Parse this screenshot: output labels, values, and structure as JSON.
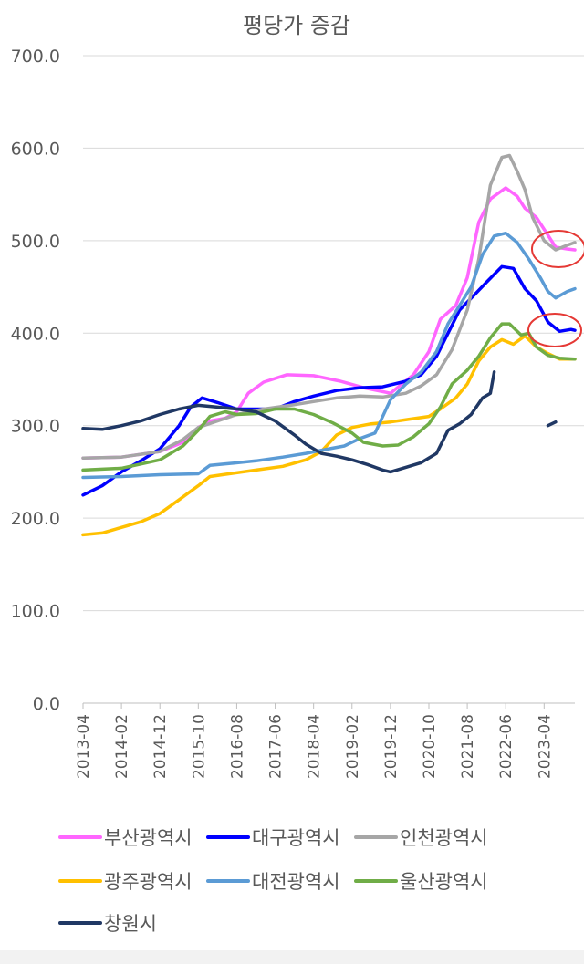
{
  "chart_data": {
    "type": "line",
    "title": "평당가 증감",
    "ylim": [
      0,
      700
    ],
    "y_ticks": [
      "0.0",
      "100.0",
      "200.0",
      "300.0",
      "400.0",
      "500.0",
      "600.0",
      "700.0"
    ],
    "x_tick_labels": [
      "2013-04",
      "2014-02",
      "2014-12",
      "2015-10",
      "2016-08",
      "2017-06",
      "2018-04",
      "2019-02",
      "2019-12",
      "2020-10",
      "2021-08",
      "2022-06",
      "2023-04"
    ],
    "x_tick_index": [
      0,
      10,
      20,
      30,
      40,
      50,
      60,
      70,
      80,
      90,
      100,
      110,
      120
    ],
    "x_max_index": 128,
    "grid": true,
    "legend_position": "bottom",
    "series": [
      {
        "name": "부산광역시",
        "color": "#ff66ff",
        "points": [
          [
            0,
            265
          ],
          [
            10,
            266
          ],
          [
            20,
            272
          ],
          [
            26,
            282
          ],
          [
            30,
            298
          ],
          [
            33,
            305
          ],
          [
            37,
            308
          ],
          [
            40,
            315
          ],
          [
            43,
            335
          ],
          [
            47,
            347
          ],
          [
            53,
            355
          ],
          [
            60,
            354
          ],
          [
            67,
            348
          ],
          [
            73,
            341
          ],
          [
            80,
            335
          ],
          [
            86,
            355
          ],
          [
            90,
            380
          ],
          [
            93,
            415
          ],
          [
            97,
            430
          ],
          [
            100,
            460
          ],
          [
            103,
            520
          ],
          [
            106,
            545
          ],
          [
            110,
            557
          ],
          [
            113,
            548
          ],
          [
            115,
            535
          ],
          [
            118,
            525
          ],
          [
            121,
            506
          ],
          [
            123,
            493
          ],
          [
            126,
            491
          ],
          [
            128,
            490
          ]
        ]
      },
      {
        "name": "대구광역시",
        "color": "#0000ff",
        "points": [
          [
            0,
            225
          ],
          [
            5,
            235
          ],
          [
            10,
            250
          ],
          [
            15,
            262
          ],
          [
            20,
            275
          ],
          [
            25,
            300
          ],
          [
            28,
            320
          ],
          [
            31,
            330
          ],
          [
            35,
            325
          ],
          [
            40,
            318
          ],
          [
            45,
            318
          ],
          [
            50,
            318
          ],
          [
            55,
            326
          ],
          [
            60,
            332
          ],
          [
            66,
            338
          ],
          [
            72,
            341
          ],
          [
            78,
            342
          ],
          [
            84,
            348
          ],
          [
            88,
            355
          ],
          [
            92,
            375
          ],
          [
            95,
            400
          ],
          [
            98,
            425
          ],
          [
            102,
            442
          ],
          [
            105,
            455
          ],
          [
            109,
            472
          ],
          [
            112,
            470
          ],
          [
            115,
            448
          ],
          [
            118,
            435
          ],
          [
            121,
            412
          ],
          [
            124,
            402
          ],
          [
            127,
            404
          ],
          [
            128,
            403
          ]
        ]
      },
      {
        "name": "인천광역시",
        "color": "#a6a6a6",
        "points": [
          [
            0,
            265
          ],
          [
            10,
            266
          ],
          [
            20,
            272
          ],
          [
            26,
            285
          ],
          [
            30,
            298
          ],
          [
            35,
            305
          ],
          [
            40,
            312
          ],
          [
            47,
            318
          ],
          [
            54,
            322
          ],
          [
            60,
            326
          ],
          [
            66,
            330
          ],
          [
            72,
            332
          ],
          [
            78,
            331
          ],
          [
            84,
            335
          ],
          [
            88,
            343
          ],
          [
            92,
            355
          ],
          [
            96,
            382
          ],
          [
            100,
            425
          ],
          [
            103,
            480
          ],
          [
            106,
            560
          ],
          [
            109,
            590
          ],
          [
            111,
            592
          ],
          [
            113,
            575
          ],
          [
            115,
            555
          ],
          [
            117,
            525
          ],
          [
            120,
            500
          ],
          [
            123,
            490
          ],
          [
            126,
            495
          ],
          [
            128,
            498
          ]
        ]
      },
      {
        "name": "광주광역시",
        "color": "#ffc000",
        "points": [
          [
            0,
            182
          ],
          [
            5,
            184
          ],
          [
            10,
            190
          ],
          [
            15,
            196
          ],
          [
            20,
            205
          ],
          [
            25,
            220
          ],
          [
            30,
            235
          ],
          [
            33,
            245
          ],
          [
            38,
            248
          ],
          [
            45,
            252
          ],
          [
            52,
            256
          ],
          [
            58,
            263
          ],
          [
            62,
            272
          ],
          [
            66,
            290
          ],
          [
            70,
            298
          ],
          [
            75,
            302
          ],
          [
            80,
            304
          ],
          [
            85,
            307
          ],
          [
            90,
            310
          ],
          [
            93,
            318
          ],
          [
            97,
            330
          ],
          [
            100,
            345
          ],
          [
            103,
            370
          ],
          [
            106,
            385
          ],
          [
            109,
            393
          ],
          [
            112,
            388
          ],
          [
            115,
            397
          ],
          [
            118,
            385
          ],
          [
            121,
            378
          ],
          [
            124,
            372
          ],
          [
            128,
            372
          ]
        ]
      },
      {
        "name": "대전광역시",
        "color": "#5b9bd5",
        "points": [
          [
            0,
            244
          ],
          [
            10,
            245
          ],
          [
            20,
            247
          ],
          [
            30,
            248
          ],
          [
            33,
            257
          ],
          [
            38,
            259
          ],
          [
            45,
            262
          ],
          [
            52,
            266
          ],
          [
            58,
            270
          ],
          [
            64,
            275
          ],
          [
            68,
            278
          ],
          [
            72,
            286
          ],
          [
            76,
            292
          ],
          [
            80,
            328
          ],
          [
            84,
            345
          ],
          [
            88,
            358
          ],
          [
            92,
            380
          ],
          [
            95,
            410
          ],
          [
            98,
            430
          ],
          [
            101,
            450
          ],
          [
            104,
            485
          ],
          [
            107,
            505
          ],
          [
            110,
            508
          ],
          [
            113,
            498
          ],
          [
            116,
            480
          ],
          [
            119,
            460
          ],
          [
            121,
            445
          ],
          [
            123,
            438
          ],
          [
            126,
            445
          ],
          [
            128,
            448
          ]
        ]
      },
      {
        "name": "울산광역시",
        "color": "#70ad47",
        "points": [
          [
            0,
            252
          ],
          [
            10,
            254
          ],
          [
            20,
            263
          ],
          [
            26,
            278
          ],
          [
            30,
            295
          ],
          [
            33,
            310
          ],
          [
            37,
            315
          ],
          [
            40,
            312
          ],
          [
            45,
            313
          ],
          [
            50,
            318
          ],
          [
            55,
            318
          ],
          [
            60,
            312
          ],
          [
            65,
            303
          ],
          [
            70,
            292
          ],
          [
            73,
            282
          ],
          [
            78,
            278
          ],
          [
            82,
            279
          ],
          [
            86,
            288
          ],
          [
            90,
            302
          ],
          [
            93,
            320
          ],
          [
            96,
            345
          ],
          [
            100,
            360
          ],
          [
            103,
            375
          ],
          [
            106,
            395
          ],
          [
            109,
            410
          ],
          [
            111,
            410
          ],
          [
            114,
            398
          ],
          [
            116,
            400
          ],
          [
            118,
            385
          ],
          [
            121,
            376
          ],
          [
            124,
            373
          ],
          [
            128,
            372
          ]
        ]
      },
      {
        "name": "창원시",
        "color": "#203864",
        "points": [
          [
            0,
            297
          ],
          [
            5,
            296
          ],
          [
            10,
            300
          ],
          [
            15,
            305
          ],
          [
            20,
            312
          ],
          [
            25,
            318
          ],
          [
            30,
            322
          ],
          [
            35,
            320
          ],
          [
            40,
            318
          ],
          [
            45,
            315
          ],
          [
            50,
            305
          ],
          [
            55,
            290
          ],
          [
            58,
            280
          ],
          [
            62,
            270
          ],
          [
            66,
            267
          ],
          [
            70,
            263
          ],
          [
            74,
            258
          ],
          [
            78,
            252
          ],
          [
            80,
            250
          ],
          [
            84,
            255
          ],
          [
            88,
            260
          ],
          [
            92,
            270
          ],
          [
            95,
            295
          ],
          [
            98,
            302
          ],
          [
            101,
            312
          ],
          [
            104,
            330
          ],
          [
            106,
            335
          ],
          [
            107,
            358
          ]
        ]
      },
      {
        "name": "창원시",
        "color": "#203864",
        "points": [
          [
            121,
            300
          ],
          [
            123,
            304
          ]
        ]
      }
    ]
  }
}
